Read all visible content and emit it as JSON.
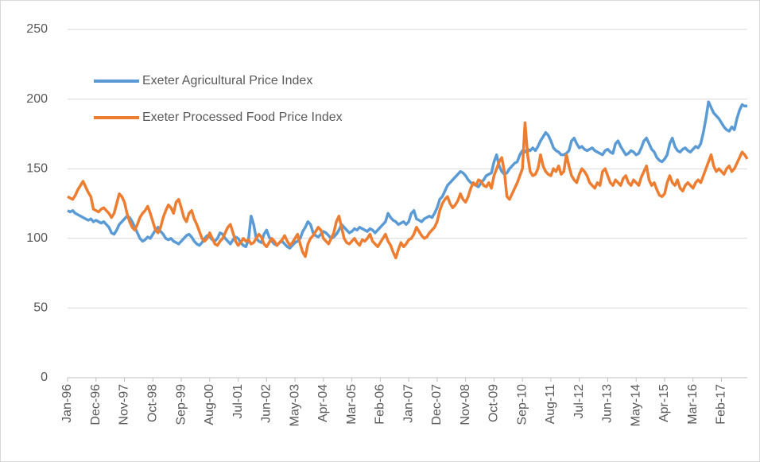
{
  "chart_data": {
    "type": "line",
    "legend": "upper left",
    "grid": true,
    "ylim": [
      0,
      250
    ],
    "yticks": [
      0,
      50,
      100,
      150,
      200,
      250
    ],
    "categories": [
      "Jan-96",
      null,
      null,
      null,
      null,
      null,
      null,
      null,
      null,
      null,
      null,
      "Dec-96",
      null,
      null,
      null,
      null,
      null,
      null,
      null,
      null,
      null,
      null,
      "Nov-97",
      null,
      null,
      null,
      null,
      null,
      null,
      null,
      null,
      null,
      null,
      "Oct-98",
      null,
      null,
      null,
      null,
      null,
      null,
      null,
      null,
      null,
      null,
      "Sep-99",
      null,
      null,
      null,
      null,
      null,
      null,
      null,
      null,
      null,
      null,
      "Aug-00",
      null,
      null,
      null,
      null,
      null,
      null,
      null,
      null,
      null,
      null,
      "Jul-01",
      null,
      null,
      null,
      null,
      null,
      null,
      null,
      null,
      null,
      null,
      "Jun-02",
      null,
      null,
      null,
      null,
      null,
      null,
      null,
      null,
      null,
      null,
      "May-03",
      null,
      null,
      null,
      null,
      null,
      null,
      null,
      null,
      null,
      null,
      "Apr-04",
      null,
      null,
      null,
      null,
      null,
      null,
      null,
      null,
      null,
      null,
      "Mar-05",
      null,
      null,
      null,
      null,
      null,
      null,
      null,
      null,
      null,
      null,
      "Feb-06",
      null,
      null,
      null,
      null,
      null,
      null,
      null,
      null,
      null,
      null,
      "Jan-07",
      null,
      null,
      null,
      null,
      null,
      null,
      null,
      null,
      null,
      null,
      "Dec-07",
      null,
      null,
      null,
      null,
      null,
      null,
      null,
      null,
      null,
      null,
      "Nov-08",
      null,
      null,
      null,
      null,
      null,
      null,
      null,
      null,
      null,
      null,
      "Oct-09",
      null,
      null,
      null,
      null,
      null,
      null,
      null,
      null,
      null,
      null,
      "Sep-10",
      null,
      null,
      null,
      null,
      null,
      null,
      null,
      null,
      null,
      null,
      "Aug-11",
      null,
      null,
      null,
      null,
      null,
      null,
      null,
      null,
      null,
      null,
      "Jul-12",
      null,
      null,
      null,
      null,
      null,
      null,
      null,
      null,
      null,
      null,
      "Jun-13",
      null,
      null,
      null,
      null,
      null,
      null,
      null,
      null,
      null,
      null,
      "May-14",
      null,
      null,
      null,
      null,
      null,
      null,
      null,
      null,
      null,
      null,
      "Apr-15",
      null,
      null,
      null,
      null,
      null,
      null,
      null,
      null,
      null,
      null,
      "Mar-16",
      null,
      null,
      null,
      null,
      null,
      null,
      null,
      null,
      null,
      null,
      "Feb-17",
      null,
      null,
      null,
      null,
      null,
      null,
      null,
      null,
      null,
      null
    ],
    "series": [
      {
        "name": "Exeter Agricultural Price Index",
        "color": "#5b9bd5",
        "values": [
          120,
          119,
          120,
          118,
          117,
          116,
          115,
          114,
          113,
          114,
          112,
          113,
          112,
          111,
          112,
          110,
          108,
          104,
          103,
          106,
          110,
          112,
          114,
          116,
          115,
          112,
          108,
          104,
          100,
          98,
          99,
          101,
          100,
          103,
          106,
          108,
          105,
          103,
          100,
          99,
          100,
          98,
          97,
          96,
          98,
          100,
          102,
          103,
          101,
          98,
          96,
          95,
          97,
          100,
          102,
          101,
          99,
          98,
          100,
          104,
          103,
          100,
          98,
          96,
          99,
          101,
          100,
          97,
          95,
          94,
          99,
          116,
          110,
          100,
          98,
          97,
          103,
          106,
          101,
          98,
          96,
          95,
          97,
          98,
          96,
          94,
          93,
          95,
          97,
          98,
          100,
          105,
          108,
          112,
          110,
          104,
          102,
          101,
          103,
          105,
          104,
          102,
          100,
          101,
          103,
          106,
          110,
          108,
          106,
          104,
          105,
          107,
          106,
          108,
          107,
          106,
          105,
          107,
          106,
          104,
          106,
          108,
          110,
          112,
          118,
          115,
          113,
          112,
          110,
          111,
          112,
          110,
          112,
          118,
          120,
          114,
          113,
          112,
          114,
          115,
          116,
          115,
          118,
          122,
          128,
          130,
          134,
          138,
          140,
          142,
          144,
          146,
          148,
          147,
          145,
          142,
          140,
          139,
          138,
          137,
          140,
          142,
          145,
          146,
          147,
          155,
          160,
          152,
          148,
          146,
          147,
          150,
          152,
          154,
          155,
          160,
          163,
          162,
          164,
          163,
          165,
          163,
          166,
          170,
          173,
          176,
          174,
          170,
          165,
          163,
          162,
          160,
          160,
          161,
          163,
          170,
          172,
          168,
          165,
          166,
          164,
          163,
          164,
          165,
          163,
          162,
          161,
          160,
          163,
          164,
          162,
          161,
          168,
          170,
          166,
          163,
          160,
          161,
          163,
          162,
          160,
          161,
          165,
          170,
          172,
          168,
          164,
          162,
          158,
          156,
          155,
          157,
          160,
          168,
          172,
          166,
          163,
          162,
          164,
          165,
          163,
          162,
          164,
          166,
          165,
          168,
          176,
          186,
          198,
          194,
          190,
          188,
          186,
          183,
          180,
          178,
          177,
          180,
          178,
          186,
          192,
          196,
          195,
          195
        ]
      },
      {
        "name": "Exeter Processed Food Price Index",
        "color": "#ed7d31",
        "values": [
          130,
          129,
          128,
          131,
          135,
          138,
          141,
          137,
          133,
          130,
          121,
          120,
          119,
          121,
          122,
          120,
          118,
          115,
          118,
          125,
          132,
          130,
          126,
          118,
          112,
          108,
          106,
          110,
          115,
          118,
          120,
          123,
          118,
          112,
          106,
          104,
          108,
          115,
          120,
          124,
          122,
          118,
          126,
          128,
          122,
          115,
          112,
          118,
          120,
          114,
          110,
          105,
          100,
          98,
          100,
          104,
          100,
          96,
          95,
          98,
          100,
          104,
          108,
          110,
          104,
          98,
          95,
          97,
          100,
          98,
          99,
          96,
          97,
          100,
          103,
          101,
          96,
          94,
          97,
          100,
          98,
          95,
          97,
          99,
          102,
          98,
          95,
          97,
          100,
          103,
          96,
          90,
          87,
          96,
          100,
          102,
          105,
          108,
          106,
          100,
          98,
          96,
          100,
          104,
          112,
          116,
          108,
          100,
          97,
          96,
          98,
          100,
          97,
          95,
          99,
          98,
          100,
          103,
          98,
          96,
          94,
          97,
          100,
          103,
          98,
          95,
          90,
          86,
          92,
          97,
          94,
          96,
          99,
          100,
          103,
          108,
          105,
          102,
          100,
          101,
          104,
          106,
          108,
          112,
          120,
          125,
          128,
          130,
          125,
          122,
          124,
          127,
          132,
          128,
          126,
          130,
          136,
          140,
          138,
          142,
          141,
          138,
          137,
          140,
          136,
          145,
          150,
          155,
          158,
          148,
          130,
          128,
          132,
          136,
          140,
          145,
          150,
          183,
          160,
          148,
          145,
          146,
          150,
          160,
          152,
          148,
          146,
          145,
          150,
          148,
          152,
          146,
          148,
          160,
          152,
          145,
          142,
          140,
          146,
          150,
          148,
          145,
          140,
          138,
          136,
          140,
          138,
          148,
          150,
          145,
          140,
          138,
          142,
          140,
          138,
          143,
          145,
          140,
          138,
          142,
          140,
          138,
          144,
          148,
          152,
          142,
          138,
          140,
          135,
          131,
          130,
          132,
          140,
          145,
          140,
          138,
          142,
          136,
          134,
          138,
          140,
          138,
          136,
          140,
          142,
          140,
          145,
          150,
          155,
          160,
          152,
          148,
          150,
          148,
          146,
          150,
          152,
          148,
          150,
          154,
          158,
          162,
          160,
          157
        ]
      }
    ]
  }
}
